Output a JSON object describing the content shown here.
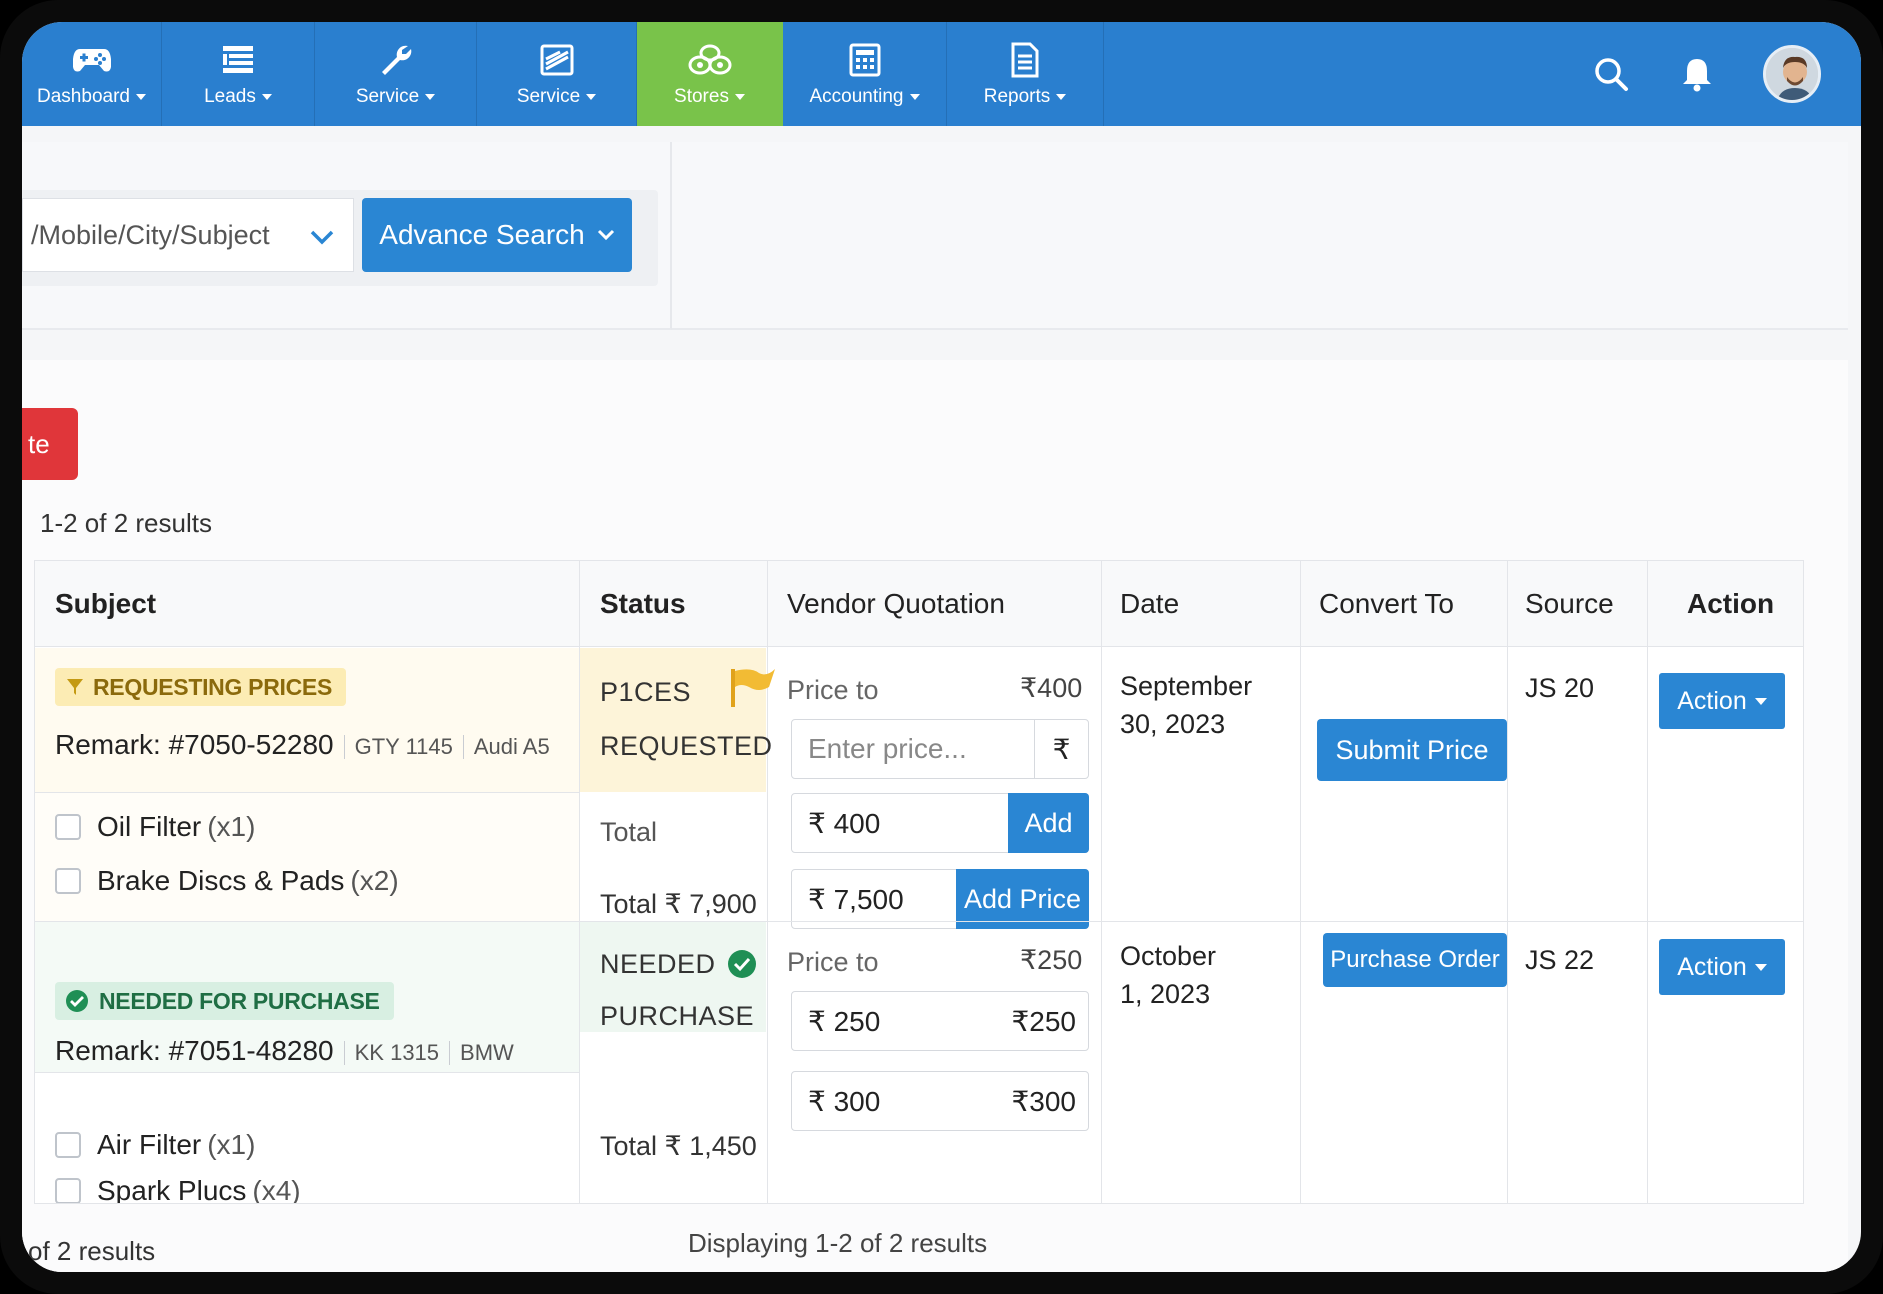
{
  "nav": {
    "items": [
      {
        "label": "Dashboard",
        "icon": "gamepad-icon"
      },
      {
        "label": "Leads",
        "icon": "list-icon"
      },
      {
        "label": "Service",
        "icon": "wrench-icon"
      },
      {
        "label": "Service",
        "icon": "layers-icon"
      },
      {
        "label": "Stores",
        "icon": "stores-icon"
      },
      {
        "label": "Accounting",
        "icon": "calculator-icon"
      },
      {
        "label": "Reports",
        "icon": "document-icon"
      }
    ],
    "active": "Stores",
    "colors": {
      "bar": "#2a7fcf",
      "active": "#79c34a"
    }
  },
  "search": {
    "value": "/Mobile/City/Subject",
    "advance_label": "Advance Search"
  },
  "toolbar": {
    "delete_label": "te"
  },
  "results_top": "1-2 of 2 results",
  "table": {
    "headers": {
      "subject": "Subject",
      "status": "Status",
      "vendor": "Vendor Quotation",
      "date": "Date",
      "convert": "Convert To",
      "source": "Source",
      "action": "Action"
    },
    "rows": [
      {
        "badge": "REQUESTING PRICES",
        "remark": "Remark: #7050-52280",
        "meta1": "GTY 1145",
        "meta2": "Audi A5",
        "items": [
          {
            "name": "Oil Filter",
            "qty": "(x1)"
          },
          {
            "name": "Brake Discs & Pads",
            "qty": "(x2)"
          }
        ],
        "status_line1": "P1CES",
        "status_line2": "REQUESTED",
        "total_label": "Total",
        "total_value": "Total ₹ 7,900",
        "price_to_label": "Price to",
        "price_to_value": "₹400",
        "input_placeholder": "Enter price...",
        "currency": "₹",
        "input2_value": "₹  400",
        "input2_btn": "Add",
        "input3_value": "₹  7,500",
        "input3_btn": "Add Price",
        "date_line1": "September",
        "date_line2": "30, 2023",
        "convert_btn": "Submit Price",
        "source": "JS 20",
        "action": "Action"
      },
      {
        "badge": "NEEDED FOR PURCHASE",
        "remark": "Remark: #7051-48280",
        "meta1": "KK 1315",
        "meta2": "BMW",
        "items": [
          {
            "name": "Air Filter",
            "qty": "(x1)"
          },
          {
            "name": "Spark Plucs",
            "qty": "(x4)"
          }
        ],
        "status_line1": "NEEDED",
        "status_line2": "PURCHASE",
        "total_value": "Total ₹ 1,450",
        "price_to_label": "Price to",
        "price_to_value": "₹250",
        "input1_value": "₹  250",
        "input1_right": "₹250",
        "input2_value": "₹  300",
        "input2_right": "₹300",
        "date_line1": "October",
        "date_line2": "1, 2023",
        "convert_btn": "Purchase Order",
        "source": "JS 22",
        "action": "Action"
      }
    ]
  },
  "results_bottom": "of 2 results",
  "displaying": "Displaying 1-2 of 2 results"
}
